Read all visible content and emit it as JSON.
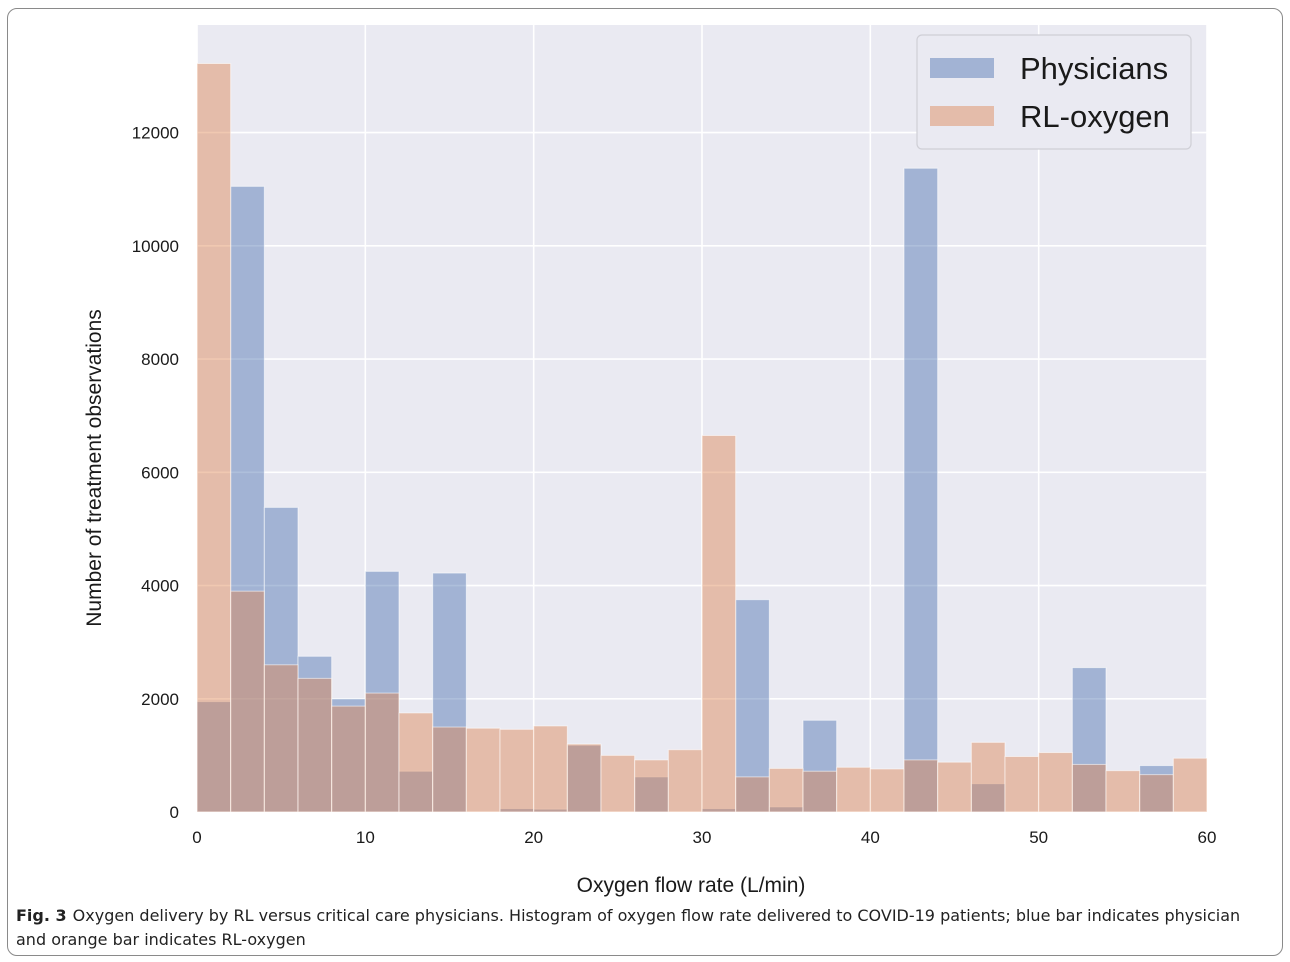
{
  "caption": {
    "label": "Fig. 3",
    "text": "Oxygen delivery by RL versus critical care physicians. Histogram of oxygen flow rate delivered to COVID-19 patients; blue bar indicates physician and orange bar indicates RL-oxygen"
  },
  "chart_data": {
    "type": "bar",
    "title": "",
    "xlabel": "Oxygen flow rate (L/min)",
    "ylabel": "Number of treatment observations",
    "xlim": [
      0,
      60
    ],
    "ylim": [
      0,
      13900
    ],
    "xticks": [
      0,
      10,
      20,
      30,
      40,
      50,
      60
    ],
    "yticks": [
      0,
      2000,
      4000,
      6000,
      8000,
      10000,
      12000
    ],
    "bin_edges": [
      0,
      2,
      4,
      6,
      8,
      10,
      12,
      14,
      16,
      18,
      20,
      22,
      24,
      26,
      28,
      30,
      32,
      34,
      36,
      38,
      40,
      42,
      44,
      46,
      48,
      50,
      52,
      54,
      56,
      58,
      60
    ],
    "grid": true,
    "legend_position": "top-right",
    "colors": {
      "plot_background": "#eaeaf2",
      "grid": "#ffffff",
      "Physicians": "#4c72b0",
      "RL-oxygen": "#dd8452",
      "bar_opacity": 0.45
    },
    "series": [
      {
        "name": "Physicians",
        "values": [
          1950,
          11050,
          5380,
          2750,
          2000,
          4250,
          720,
          4220,
          0,
          60,
          50,
          1180,
          0,
          620,
          0,
          60,
          3750,
          90,
          1620,
          0,
          0,
          11370,
          0,
          500,
          0,
          0,
          2550,
          0,
          820,
          0
        ]
      },
      {
        "name": "RL-oxygen",
        "values": [
          13220,
          3900,
          2600,
          2360,
          1870,
          2100,
          1750,
          1500,
          1480,
          1460,
          1520,
          1200,
          1000,
          920,
          1100,
          6650,
          620,
          770,
          720,
          790,
          760,
          920,
          880,
          1230,
          980,
          1050,
          840,
          730,
          660,
          950
        ]
      }
    ]
  }
}
